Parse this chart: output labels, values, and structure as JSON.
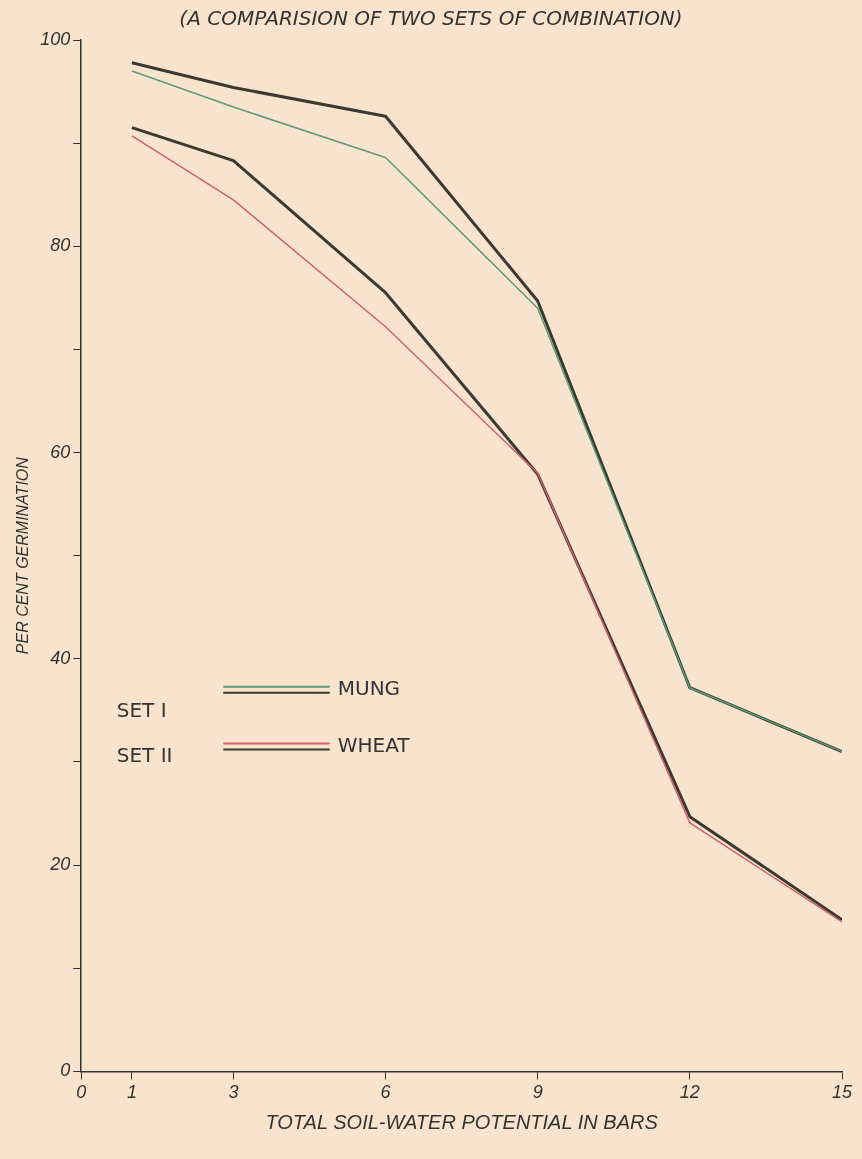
{
  "chart_data": {
    "type": "line",
    "title": "(A COMPARISION OF TWO SETS OF COMBINATION)",
    "xlabel": "TOTAL SOIL-WATER POTENTIAL IN BARS",
    "ylabel": "PER CENT GERMINATION",
    "x": [
      1,
      3,
      6,
      9,
      12,
      15
    ],
    "series": [
      {
        "color": "#5a9a7a",
        "values": [
          97.0,
          93.5,
          88.6,
          74.0,
          37.2,
          31
        ]
      },
      {
        "color": "#3a3a32",
        "values": [
          97.8,
          95.4,
          92.6,
          74.7,
          37.2,
          31
        ]
      },
      {
        "color": "#d06070",
        "values": [
          90.7,
          84.5,
          72.2,
          58,
          24.1,
          14.5
        ]
      },
      {
        "color": "#3a3a32",
        "values": [
          91.5,
          88.3,
          75.5,
          57.9,
          24.7,
          14.7
        ]
      }
    ],
    "xlim": [
      0,
      15
    ],
    "xticks": [
      0,
      1,
      3,
      6,
      9,
      12,
      15
    ],
    "ylim": [
      0,
      100
    ],
    "yticks": [
      0,
      {
        "value": 10,
        "label": null
      },
      20,
      {
        "value": 30,
        "label": null
      },
      40,
      {
        "value": 50,
        "label": null
      },
      60,
      {
        "value": 70,
        "label": null
      },
      80,
      {
        "value": 90,
        "label": null
      },
      100
    ],
    "annotations": [
      "SET I",
      "SET II",
      "MUNG",
      "WHEAT"
    ],
    "grid": false,
    "marker": "none",
    "line_style": "solid"
  }
}
